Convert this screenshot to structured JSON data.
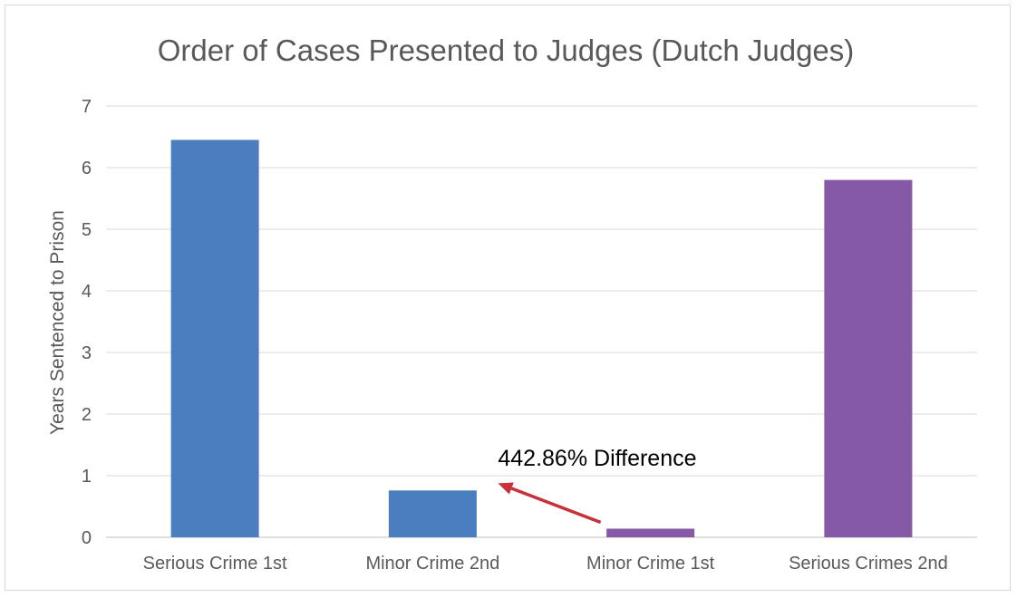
{
  "chart_data": {
    "type": "bar",
    "title": "Order of Cases Presented to Judges (Dutch Judges)",
    "xlabel": "",
    "ylabel": "Years Sentenced to Prison",
    "categories": [
      "Serious Crime 1st",
      "Minor Crime 2nd",
      "Minor Crime 1st",
      "Serious Crimes 2nd"
    ],
    "values": [
      6.45,
      0.76,
      0.14,
      5.8
    ],
    "bar_colors": [
      "#4a7ebf",
      "#4a7ebf",
      "#8559a5",
      "#8559a5"
    ],
    "ylim": [
      0,
      7
    ],
    "yticks": [
      0,
      1,
      2,
      3,
      4,
      5,
      6,
      7
    ],
    "grid": true,
    "legend": "none",
    "annotation": {
      "text": "442.86% Difference",
      "arrow_color": "#c8313c",
      "from_category": "Minor Crime 1st",
      "to_category": "Minor Crime 2nd"
    }
  }
}
